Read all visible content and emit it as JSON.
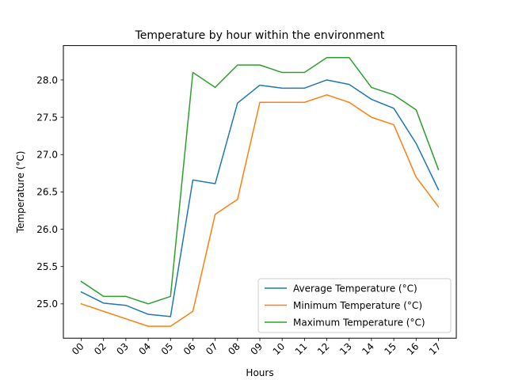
{
  "chart_data": {
    "type": "line",
    "title": "Temperature by hour within the environment",
    "xlabel": "Hours",
    "ylabel": "Temperature (°C)",
    "categories": [
      "00",
      "02",
      "03",
      "04",
      "05",
      "06",
      "07",
      "08",
      "09",
      "10",
      "11",
      "12",
      "13",
      "14",
      "15",
      "16",
      "17"
    ],
    "ylim": [
      24.54,
      28.46
    ],
    "yticks": [
      25.0,
      25.5,
      26.0,
      26.5,
      27.0,
      27.5,
      28.0
    ],
    "ytick_labels": [
      "25.0",
      "25.5",
      "26.0",
      "26.5",
      "27.0",
      "27.5",
      "28.0"
    ],
    "grid": false,
    "legend_position": "lower-right",
    "series": [
      {
        "name": "Average Temperature (°C)",
        "color": "#1f77b4",
        "values": [
          25.16,
          25.01,
          24.98,
          24.86,
          24.83,
          26.66,
          26.61,
          27.69,
          27.93,
          27.89,
          27.89,
          28.0,
          27.94,
          27.74,
          27.62,
          27.15,
          26.53
        ]
      },
      {
        "name": "Minimum Temperature (°C)",
        "color": "#ff7f0e",
        "values": [
          25.0,
          24.9,
          24.8,
          24.7,
          24.7,
          24.9,
          26.2,
          26.4,
          27.7,
          27.7,
          27.7,
          27.8,
          27.7,
          27.5,
          27.4,
          26.7,
          26.3
        ]
      },
      {
        "name": "Maximum Temperature (°C)",
        "color": "#2ca02c",
        "values": [
          25.3,
          25.1,
          25.1,
          25.0,
          25.1,
          28.1,
          27.9,
          28.2,
          28.2,
          28.1,
          28.1,
          28.3,
          28.3,
          27.9,
          27.8,
          27.6,
          26.8
        ]
      }
    ]
  }
}
